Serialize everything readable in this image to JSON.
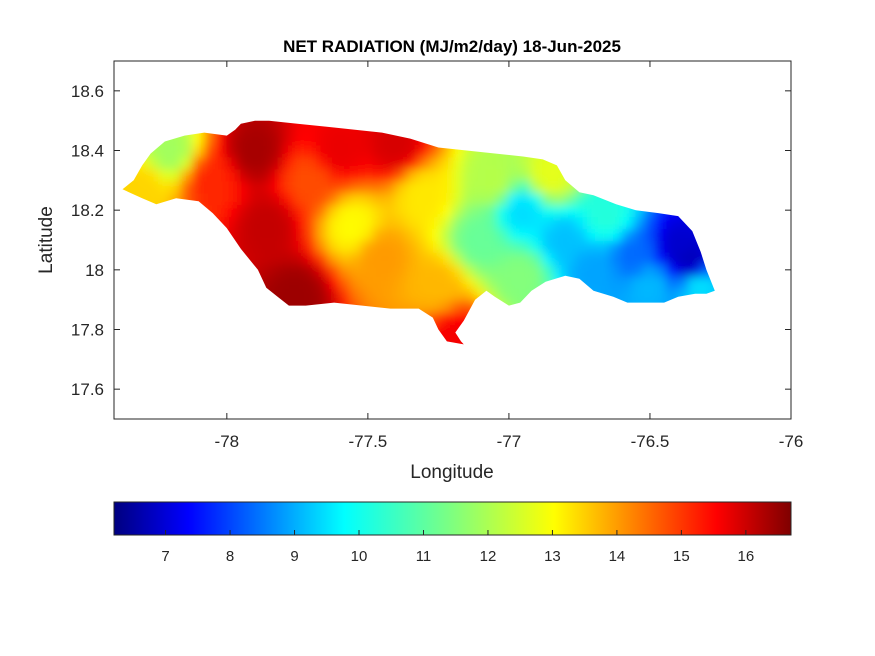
{
  "chart_data": {
    "type": "heatmap",
    "title": "NET RADIATION (MJ/m2/day) 18-Jun-2025",
    "xlabel": "Longitude",
    "ylabel": "Latitude",
    "xlim": [
      -78.4,
      -76.0
    ],
    "ylim": [
      17.5,
      18.7
    ],
    "x_ticks": [
      -78,
      -77.5,
      -77,
      -76.5,
      -76
    ],
    "x_tick_labels": [
      "-78",
      "-77.5",
      "-77",
      "-76.5",
      "-76"
    ],
    "y_ticks": [
      17.6,
      17.8,
      18.0,
      18.2,
      18.4,
      18.6
    ],
    "y_tick_labels": [
      "17.6",
      "17.8",
      "18",
      "18.2",
      "18.4",
      "18.6"
    ],
    "grid": false,
    "colormap": "jet",
    "colorbar": {
      "orientation": "horizontal",
      "placement": "bottom",
      "range": [
        6.2,
        16.7
      ],
      "ticks": [
        7,
        8,
        9,
        10,
        11,
        12,
        13,
        14,
        15,
        16
      ],
      "tick_labels": [
        "7",
        "8",
        "9",
        "10",
        "11",
        "12",
        "13",
        "14",
        "15",
        "16"
      ]
    },
    "region_outline": [
      [
        -78.37,
        18.27
      ],
      [
        -78.33,
        18.3
      ],
      [
        -78.3,
        18.35
      ],
      [
        -78.27,
        18.39
      ],
      [
        -78.22,
        18.43
      ],
      [
        -78.15,
        18.45
      ],
      [
        -78.08,
        18.46
      ],
      [
        -78.0,
        18.45
      ],
      [
        -77.97,
        18.47
      ],
      [
        -77.95,
        18.49
      ],
      [
        -77.9,
        18.5
      ],
      [
        -77.85,
        18.5
      ],
      [
        -77.75,
        18.49
      ],
      [
        -77.65,
        18.48
      ],
      [
        -77.55,
        18.47
      ],
      [
        -77.45,
        18.46
      ],
      [
        -77.35,
        18.44
      ],
      [
        -77.25,
        18.41
      ],
      [
        -77.15,
        18.4
      ],
      [
        -77.05,
        18.39
      ],
      [
        -76.95,
        18.38
      ],
      [
        -76.88,
        18.37
      ],
      [
        -76.83,
        18.35
      ],
      [
        -76.8,
        18.3
      ],
      [
        -76.75,
        18.26
      ],
      [
        -76.7,
        18.25
      ],
      [
        -76.62,
        18.22
      ],
      [
        -76.55,
        18.2
      ],
      [
        -76.47,
        18.19
      ],
      [
        -76.4,
        18.18
      ],
      [
        -76.35,
        18.13
      ],
      [
        -76.32,
        18.06
      ],
      [
        -76.3,
        18.0
      ],
      [
        -76.27,
        17.93
      ],
      [
        -76.3,
        17.92
      ],
      [
        -76.34,
        17.92
      ],
      [
        -76.4,
        17.91
      ],
      [
        -76.45,
        17.89
      ],
      [
        -76.52,
        17.89
      ],
      [
        -76.58,
        17.89
      ],
      [
        -76.63,
        17.91
      ],
      [
        -76.7,
        17.93
      ],
      [
        -76.75,
        17.97
      ],
      [
        -76.8,
        17.98
      ],
      [
        -76.87,
        17.96
      ],
      [
        -76.92,
        17.93
      ],
      [
        -76.96,
        17.89
      ],
      [
        -77.0,
        17.88
      ],
      [
        -77.05,
        17.91
      ],
      [
        -77.08,
        17.93
      ],
      [
        -77.12,
        17.9
      ],
      [
        -77.16,
        17.83
      ],
      [
        -77.19,
        17.79
      ],
      [
        -77.17,
        17.76
      ],
      [
        -77.16,
        17.75
      ],
      [
        -77.22,
        17.76
      ],
      [
        -77.25,
        17.8
      ],
      [
        -77.27,
        17.84
      ],
      [
        -77.32,
        17.87
      ],
      [
        -77.42,
        17.87
      ],
      [
        -77.52,
        17.88
      ],
      [
        -77.62,
        17.89
      ],
      [
        -77.72,
        17.88
      ],
      [
        -77.78,
        17.88
      ],
      [
        -77.82,
        17.91
      ],
      [
        -77.86,
        17.94
      ],
      [
        -77.89,
        18.0
      ],
      [
        -77.95,
        18.07
      ],
      [
        -78.0,
        18.14
      ],
      [
        -78.05,
        18.19
      ],
      [
        -78.1,
        18.23
      ],
      [
        -78.18,
        18.24
      ],
      [
        -78.25,
        18.22
      ],
      [
        -78.3,
        18.24
      ],
      [
        -78.37,
        18.27
      ]
    ],
    "values_description_points": [
      {
        "x": -77.9,
        "y": 18.4,
        "value": 16.3
      },
      {
        "x": -77.85,
        "y": 18.15,
        "value": 16.0
      },
      {
        "x": -77.75,
        "y": 17.92,
        "value": 16.4
      },
      {
        "x": -78.2,
        "y": 18.4,
        "value": 11.8
      },
      {
        "x": -78.3,
        "y": 18.28,
        "value": 13.2
      },
      {
        "x": -78.05,
        "y": 18.3,
        "value": 15.0
      },
      {
        "x": -77.7,
        "y": 18.3,
        "value": 14.6
      },
      {
        "x": -77.6,
        "y": 18.4,
        "value": 15.6
      },
      {
        "x": -77.55,
        "y": 18.15,
        "value": 12.8
      },
      {
        "x": -77.45,
        "y": 18.05,
        "value": 13.8
      },
      {
        "x": -77.4,
        "y": 18.42,
        "value": 15.8
      },
      {
        "x": -77.3,
        "y": 18.25,
        "value": 13.0
      },
      {
        "x": -77.25,
        "y": 17.95,
        "value": 13.5
      },
      {
        "x": -77.18,
        "y": 17.78,
        "value": 15.5
      },
      {
        "x": -77.1,
        "y": 18.1,
        "value": 11.2
      },
      {
        "x": -77.05,
        "y": 18.3,
        "value": 12.0
      },
      {
        "x": -76.95,
        "y": 18.2,
        "value": 9.8
      },
      {
        "x": -76.95,
        "y": 17.98,
        "value": 11.5
      },
      {
        "x": -76.85,
        "y": 18.32,
        "value": 12.5
      },
      {
        "x": -76.8,
        "y": 18.1,
        "value": 9.5
      },
      {
        "x": -76.7,
        "y": 18.0,
        "value": 9.2
      },
      {
        "x": -76.65,
        "y": 18.18,
        "value": 10.5
      },
      {
        "x": -76.55,
        "y": 18.05,
        "value": 8.6
      },
      {
        "x": -76.5,
        "y": 17.95,
        "value": 9.4
      },
      {
        "x": -76.4,
        "y": 18.08,
        "value": 7.0
      },
      {
        "x": -76.35,
        "y": 18.03,
        "value": 6.8
      },
      {
        "x": -76.32,
        "y": 17.95,
        "value": 9.8
      }
    ]
  }
}
